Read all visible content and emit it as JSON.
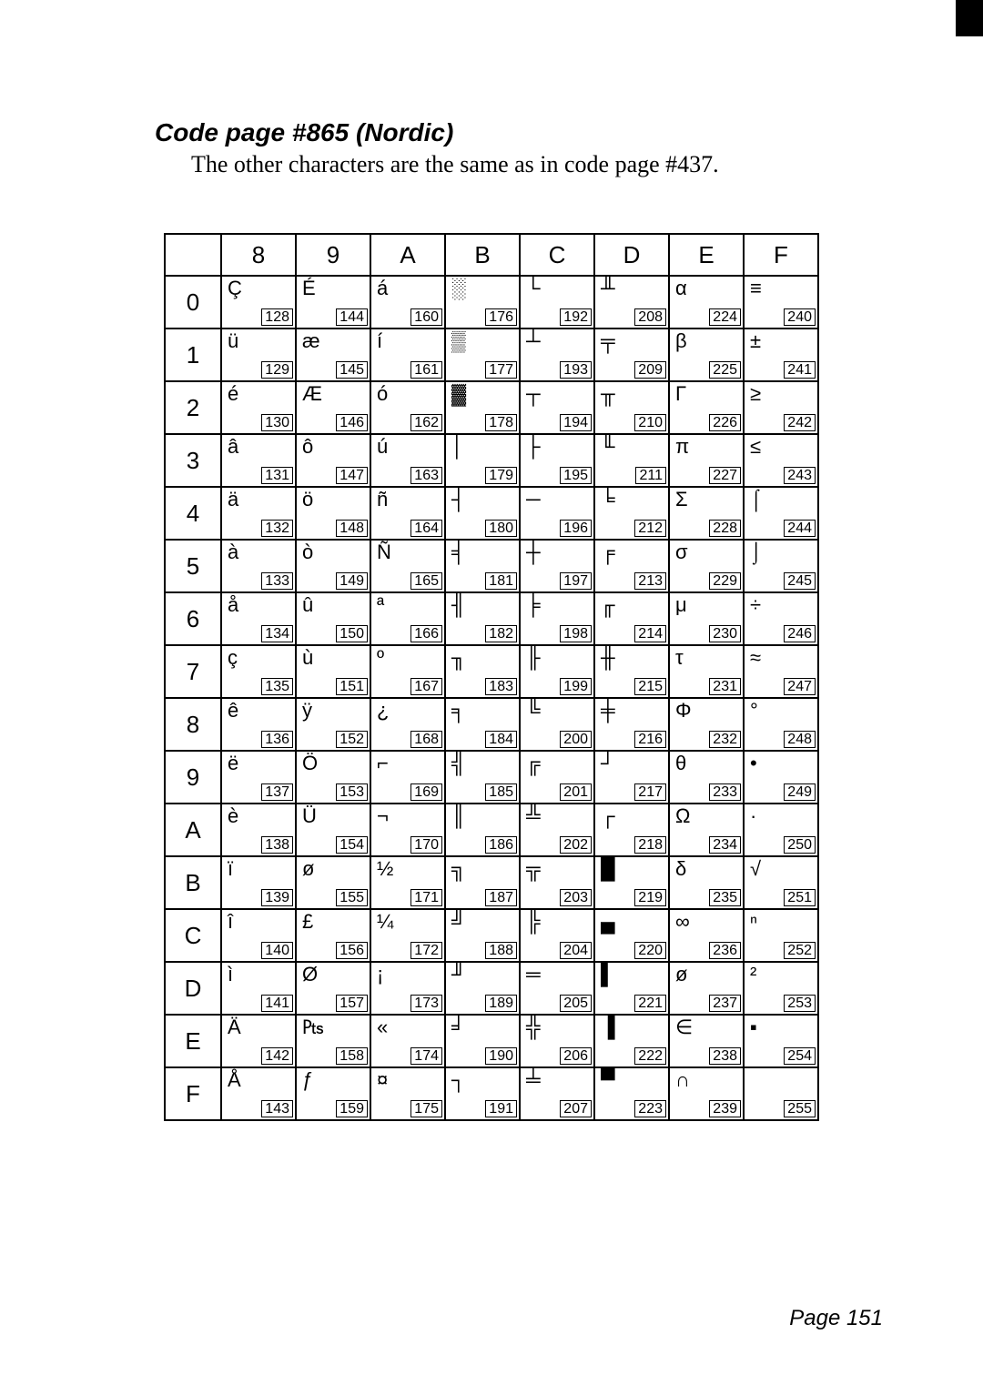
{
  "title": "Code page #865 (Nordic)",
  "subtitle": "The other characters are the same as in code page #437.",
  "page_label": "Page 151",
  "columns": [
    "8",
    "9",
    "A",
    "B",
    "C",
    "D",
    "E",
    "F"
  ],
  "rows": [
    "0",
    "1",
    "2",
    "3",
    "4",
    "5",
    "6",
    "7",
    "8",
    "9",
    "A",
    "B",
    "C",
    "D",
    "E",
    "F"
  ],
  "cells": {
    "8": {
      "0": {
        "glyph": "Ç",
        "code": "128"
      },
      "1": {
        "glyph": "ü",
        "code": "129"
      },
      "2": {
        "glyph": "é",
        "code": "130"
      },
      "3": {
        "glyph": "â",
        "code": "131"
      },
      "4": {
        "glyph": "ä",
        "code": "132"
      },
      "5": {
        "glyph": "à",
        "code": "133"
      },
      "6": {
        "glyph": "å",
        "code": "134"
      },
      "7": {
        "glyph": "ç",
        "code": "135"
      },
      "8": {
        "glyph": "ê",
        "code": "136"
      },
      "9": {
        "glyph": "ë",
        "code": "137"
      },
      "A": {
        "glyph": "è",
        "code": "138"
      },
      "B": {
        "glyph": "ï",
        "code": "139"
      },
      "C": {
        "glyph": "î",
        "code": "140"
      },
      "D": {
        "glyph": "ì",
        "code": "141"
      },
      "E": {
        "glyph": "Ä",
        "code": "142"
      },
      "F": {
        "glyph": "Å",
        "code": "143"
      }
    },
    "9": {
      "0": {
        "glyph": "É",
        "code": "144"
      },
      "1": {
        "glyph": "æ",
        "code": "145"
      },
      "2": {
        "glyph": "Æ",
        "code": "146"
      },
      "3": {
        "glyph": "ô",
        "code": "147"
      },
      "4": {
        "glyph": "ö",
        "code": "148"
      },
      "5": {
        "glyph": "ò",
        "code": "149"
      },
      "6": {
        "glyph": "û",
        "code": "150"
      },
      "7": {
        "glyph": "ù",
        "code": "151"
      },
      "8": {
        "glyph": "ÿ",
        "code": "152"
      },
      "9": {
        "glyph": "Ö",
        "code": "153"
      },
      "A": {
        "glyph": "Ü",
        "code": "154"
      },
      "B": {
        "glyph": "ø",
        "code": "155"
      },
      "C": {
        "glyph": "£",
        "code": "156"
      },
      "D": {
        "glyph": "Ø",
        "code": "157"
      },
      "E": {
        "glyph": "₧",
        "code": "158"
      },
      "F": {
        "glyph": "ƒ",
        "code": "159"
      }
    },
    "A": {
      "0": {
        "glyph": "á",
        "code": "160"
      },
      "1": {
        "glyph": "í",
        "code": "161"
      },
      "2": {
        "glyph": "ó",
        "code": "162"
      },
      "3": {
        "glyph": "ú",
        "code": "163"
      },
      "4": {
        "glyph": "ñ",
        "code": "164"
      },
      "5": {
        "glyph": "Ñ",
        "code": "165"
      },
      "6": {
        "glyph": "ª",
        "code": "166"
      },
      "7": {
        "glyph": "º",
        "code": "167"
      },
      "8": {
        "glyph": "¿",
        "code": "168"
      },
      "9": {
        "glyph": "⌐",
        "code": "169"
      },
      "A": {
        "glyph": "¬",
        "code": "170"
      },
      "B": {
        "glyph": "½",
        "code": "171"
      },
      "C": {
        "glyph": "¼",
        "code": "172"
      },
      "D": {
        "glyph": "¡",
        "code": "173"
      },
      "E": {
        "glyph": "«",
        "code": "174"
      },
      "F": {
        "glyph": "¤",
        "code": "175"
      }
    },
    "B": {
      "0": {
        "glyph": "░",
        "code": "176"
      },
      "1": {
        "glyph": "▒",
        "code": "177"
      },
      "2": {
        "glyph": "▓",
        "code": "178"
      },
      "3": {
        "glyph": "│",
        "code": "179"
      },
      "4": {
        "glyph": "┤",
        "code": "180"
      },
      "5": {
        "glyph": "╡",
        "code": "181"
      },
      "6": {
        "glyph": "╢",
        "code": "182"
      },
      "7": {
        "glyph": "╖",
        "code": "183"
      },
      "8": {
        "glyph": "╕",
        "code": "184"
      },
      "9": {
        "glyph": "╣",
        "code": "185"
      },
      "A": {
        "glyph": "║",
        "code": "186"
      },
      "B": {
        "glyph": "╗",
        "code": "187"
      },
      "C": {
        "glyph": "╝",
        "code": "188"
      },
      "D": {
        "glyph": "╜",
        "code": "189"
      },
      "E": {
        "glyph": "╛",
        "code": "190"
      },
      "F": {
        "glyph": "┐",
        "code": "191"
      }
    },
    "C": {
      "0": {
        "glyph": "└",
        "code": "192"
      },
      "1": {
        "glyph": "┴",
        "code": "193"
      },
      "2": {
        "glyph": "┬",
        "code": "194"
      },
      "3": {
        "glyph": "├",
        "code": "195"
      },
      "4": {
        "glyph": "─",
        "code": "196"
      },
      "5": {
        "glyph": "┼",
        "code": "197"
      },
      "6": {
        "glyph": "╞",
        "code": "198"
      },
      "7": {
        "glyph": "╟",
        "code": "199"
      },
      "8": {
        "glyph": "╚",
        "code": "200"
      },
      "9": {
        "glyph": "╔",
        "code": "201"
      },
      "A": {
        "glyph": "╩",
        "code": "202"
      },
      "B": {
        "glyph": "╦",
        "code": "203"
      },
      "C": {
        "glyph": "╠",
        "code": "204"
      },
      "D": {
        "glyph": "═",
        "code": "205"
      },
      "E": {
        "glyph": "╬",
        "code": "206"
      },
      "F": {
        "glyph": "╧",
        "code": "207"
      }
    },
    "D": {
      "0": {
        "glyph": "╨",
        "code": "208"
      },
      "1": {
        "glyph": "╤",
        "code": "209"
      },
      "2": {
        "glyph": "╥",
        "code": "210"
      },
      "3": {
        "glyph": "╙",
        "code": "211"
      },
      "4": {
        "glyph": "╘",
        "code": "212"
      },
      "5": {
        "glyph": "╒",
        "code": "213"
      },
      "6": {
        "glyph": "╓",
        "code": "214"
      },
      "7": {
        "glyph": "╫",
        "code": "215"
      },
      "8": {
        "glyph": "╪",
        "code": "216"
      },
      "9": {
        "glyph": "┘",
        "code": "217"
      },
      "A": {
        "glyph": "┌",
        "code": "218"
      },
      "B": {
        "glyph": "█",
        "code": "219"
      },
      "C": {
        "glyph": "▄",
        "code": "220"
      },
      "D": {
        "glyph": "▌",
        "code": "221"
      },
      "E": {
        "glyph": "▐",
        "code": "222"
      },
      "F": {
        "glyph": "▀",
        "code": "223"
      }
    },
    "E": {
      "0": {
        "glyph": "α",
        "code": "224"
      },
      "1": {
        "glyph": "β",
        "code": "225"
      },
      "2": {
        "glyph": "Γ",
        "code": "226"
      },
      "3": {
        "glyph": "π",
        "code": "227"
      },
      "4": {
        "glyph": "Σ",
        "code": "228"
      },
      "5": {
        "glyph": "σ",
        "code": "229"
      },
      "6": {
        "glyph": "μ",
        "code": "230"
      },
      "7": {
        "glyph": "τ",
        "code": "231"
      },
      "8": {
        "glyph": "Φ",
        "code": "232"
      },
      "9": {
        "glyph": "θ",
        "code": "233"
      },
      "A": {
        "glyph": "Ω",
        "code": "234"
      },
      "B": {
        "glyph": "δ",
        "code": "235"
      },
      "C": {
        "glyph": "∞",
        "code": "236"
      },
      "D": {
        "glyph": "ø",
        "code": "237"
      },
      "E": {
        "glyph": "∈",
        "code": "238"
      },
      "F": {
        "glyph": "∩",
        "code": "239"
      }
    },
    "F": {
      "0": {
        "glyph": "≡",
        "code": "240"
      },
      "1": {
        "glyph": "±",
        "code": "241"
      },
      "2": {
        "glyph": "≥",
        "code": "242"
      },
      "3": {
        "glyph": "≤",
        "code": "243"
      },
      "4": {
        "glyph": "⌠",
        "code": "244"
      },
      "5": {
        "glyph": "⌡",
        "code": "245"
      },
      "6": {
        "glyph": "÷",
        "code": "246"
      },
      "7": {
        "glyph": "≈",
        "code": "247"
      },
      "8": {
        "glyph": "°",
        "code": "248"
      },
      "9": {
        "glyph": "•",
        "code": "249"
      },
      "A": {
        "glyph": "·",
        "code": "250"
      },
      "B": {
        "glyph": "√",
        "code": "251"
      },
      "C": {
        "glyph": "ⁿ",
        "code": "252"
      },
      "D": {
        "glyph": "²",
        "code": "253"
      },
      "E": {
        "glyph": "▪",
        "code": "254"
      },
      "F": {
        "glyph": "",
        "code": "255"
      }
    }
  }
}
